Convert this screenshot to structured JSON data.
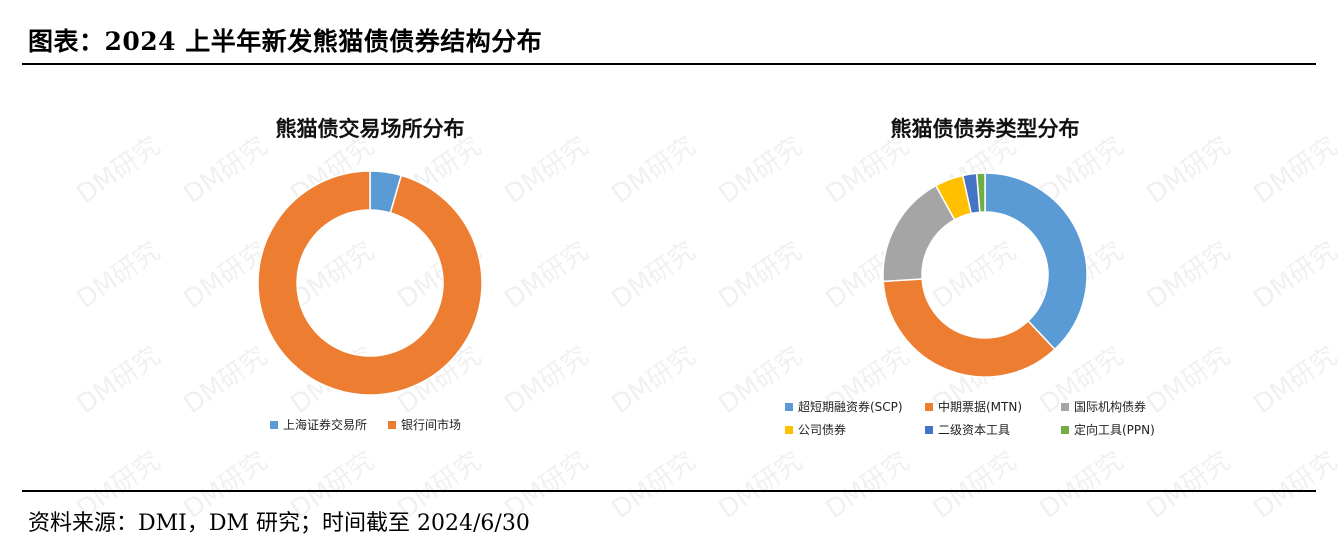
{
  "header": {
    "title": "图表：2024 上半年新发熊猫债债券结构分布"
  },
  "footer": {
    "source": "资料来源：DMI，DM 研究；时间截至 2024/6/30"
  },
  "watermark": {
    "text": "DM研究"
  },
  "chart_data": [
    {
      "type": "pie",
      "variant": "donut",
      "title": "熊猫债交易场所分布",
      "categories": [
        "上海证券交易所",
        "银行间市场"
      ],
      "values": [
        4.5,
        95.5
      ],
      "colors": [
        "#5B9BD5",
        "#ED7D31"
      ],
      "legend_position": "bottom"
    },
    {
      "type": "pie",
      "variant": "donut",
      "title": "熊猫债债券类型分布",
      "categories": [
        "超短期融资券(SCP)",
        "中期票据(MTN)",
        "国际机构债券",
        "公司债券",
        "二级资本工具",
        "定向工具(PPN)"
      ],
      "values": [
        38,
        36,
        18,
        4.5,
        2.2,
        1.3
      ],
      "colors": [
        "#5B9BD5",
        "#ED7D31",
        "#A5A5A5",
        "#FFC000",
        "#4472C4",
        "#70AD47"
      ],
      "legend_position": "bottom"
    }
  ]
}
